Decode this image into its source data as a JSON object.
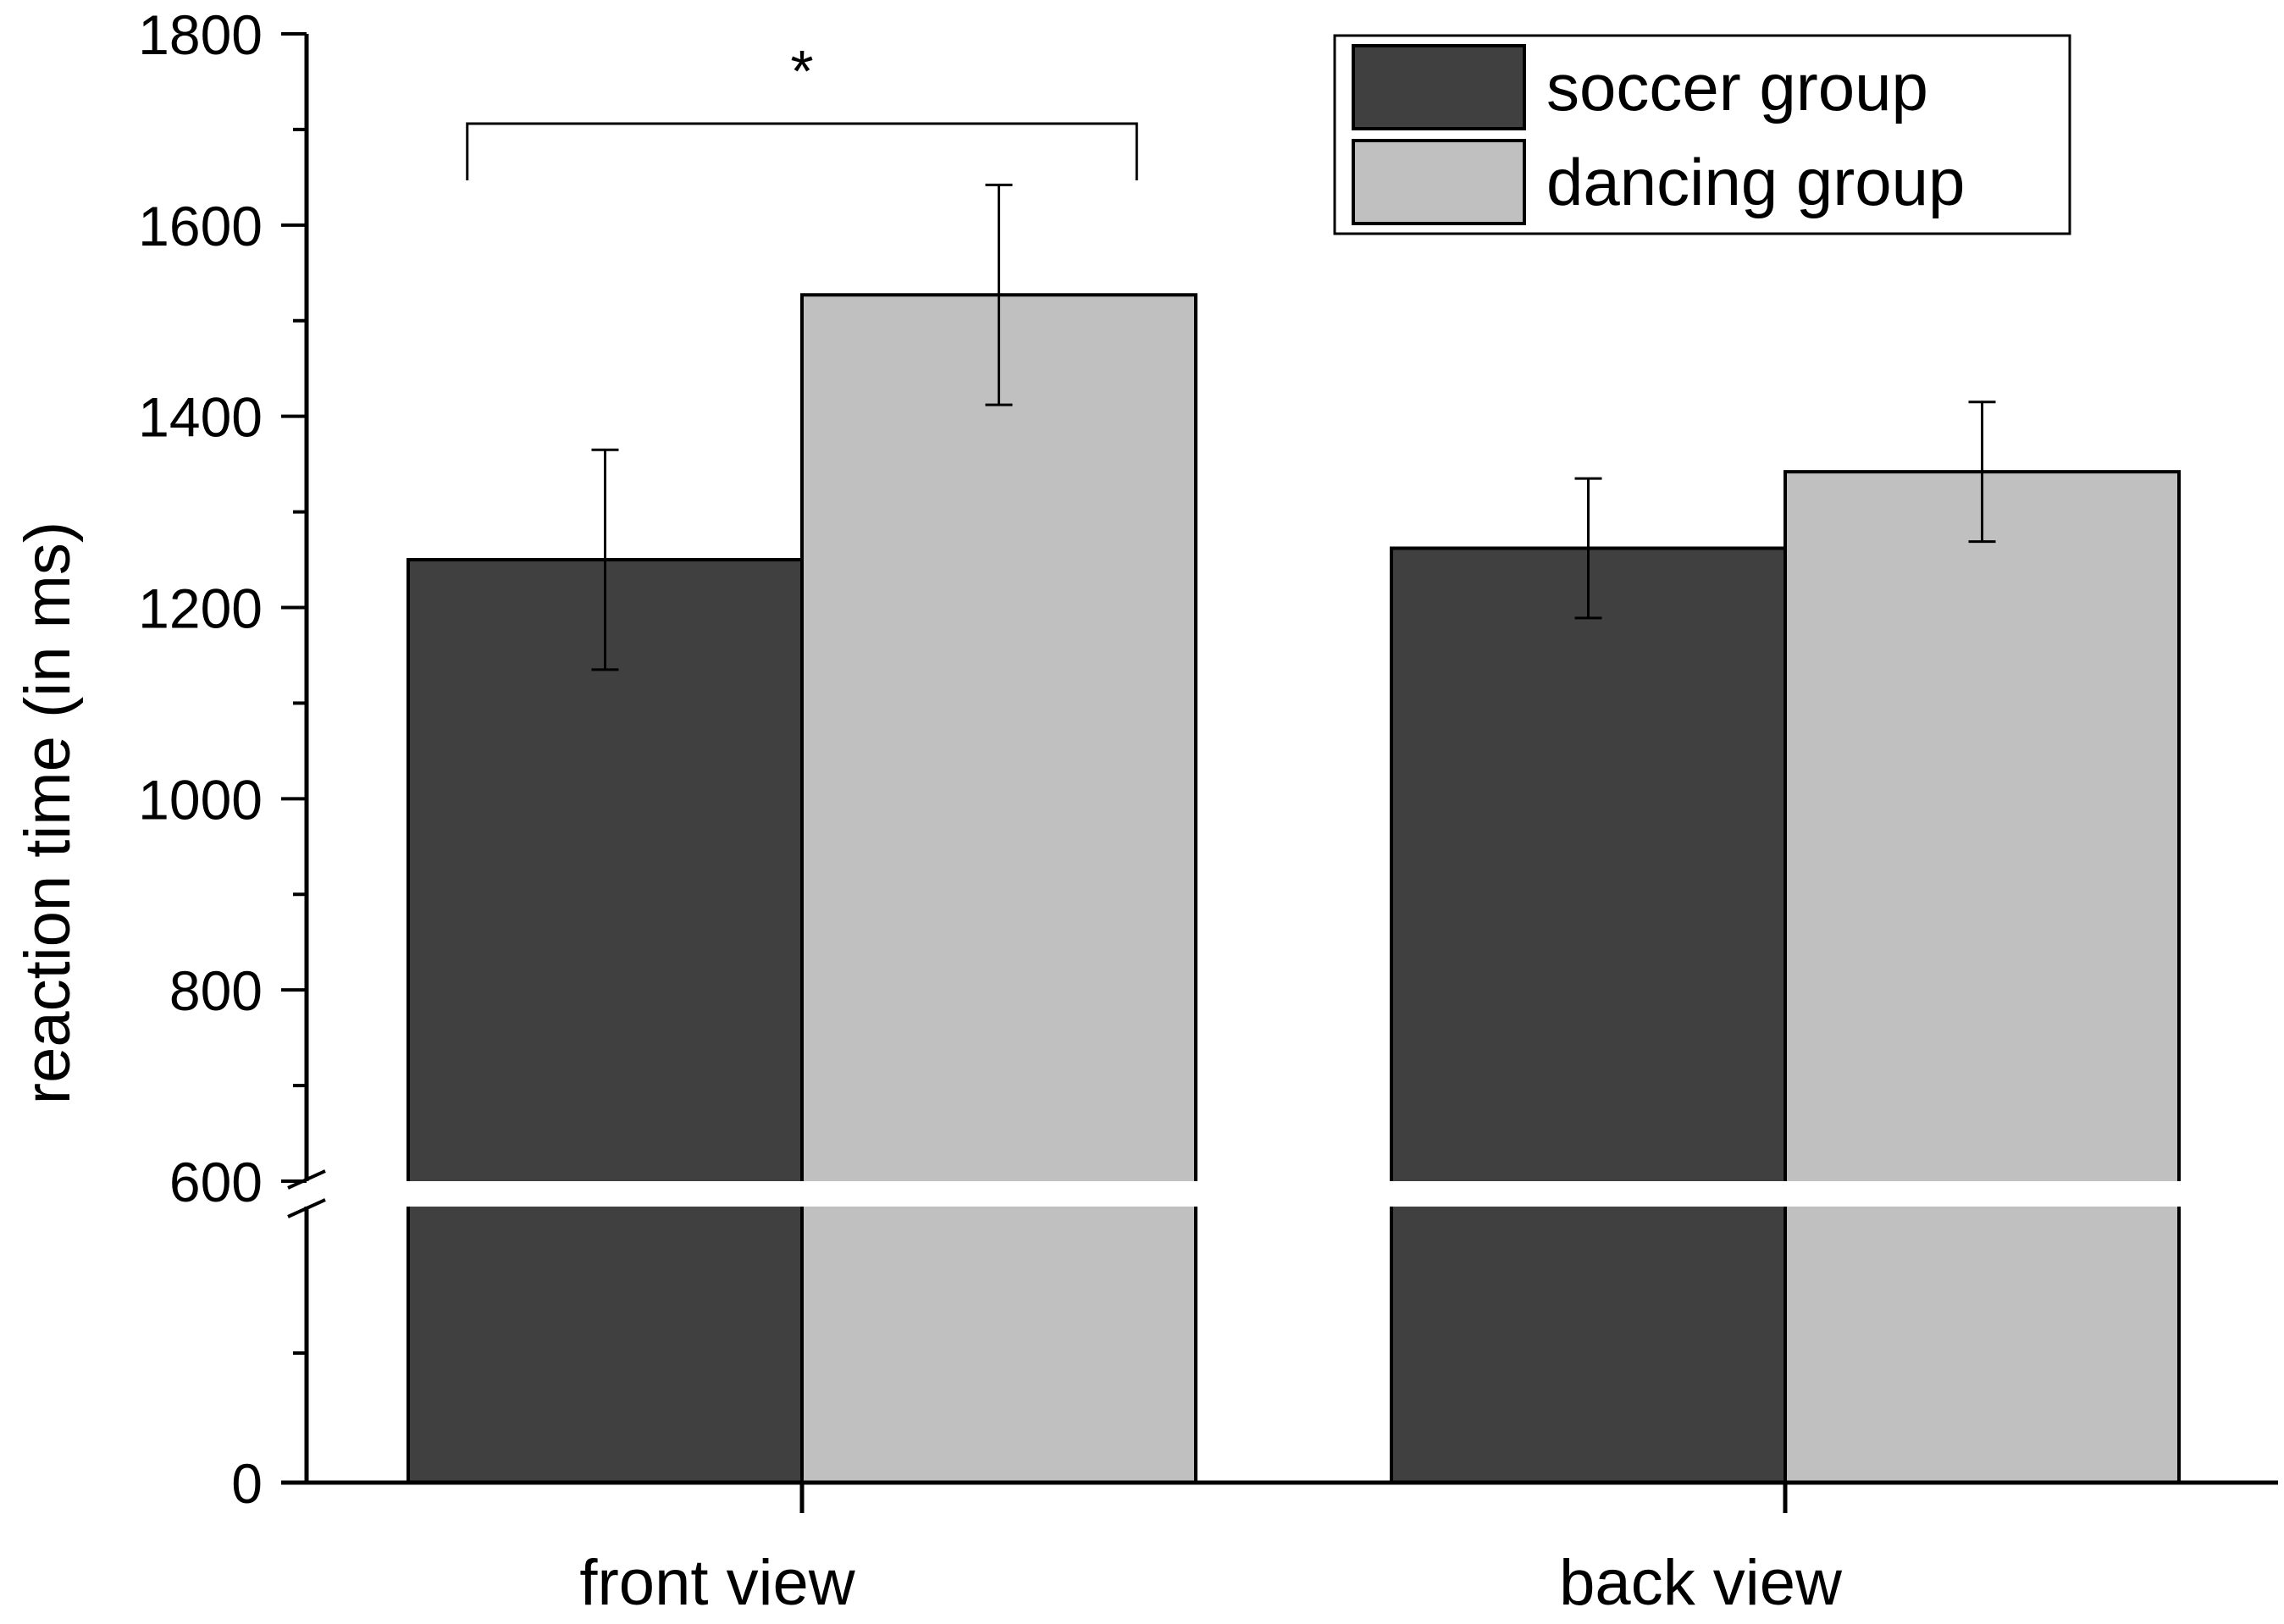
{
  "chart_data": {
    "type": "bar",
    "ylabel": "reaction time (in ms)",
    "xlabel": "",
    "categories": [
      "front view",
      "back view"
    ],
    "series": [
      {
        "name": "soccer group",
        "color": "#404040",
        "values": [
          1250,
          1262
        ],
        "error": [
          115,
          73
        ]
      },
      {
        "name": "dancing group",
        "color": "#c0c0c0",
        "values": [
          1527,
          1342
        ],
        "error": [
          115,
          73
        ]
      }
    ],
    "ylim": [
      0,
      1800
    ],
    "axis_break": [
      0,
      600
    ],
    "yticks": [
      0,
      600,
      800,
      1000,
      1200,
      1400,
      1600,
      1800
    ],
    "significance": {
      "label": "*",
      "category": "front view",
      "between": [
        "soccer group",
        "dancing group"
      ]
    },
    "legend_position": "top-right",
    "grid": false
  }
}
